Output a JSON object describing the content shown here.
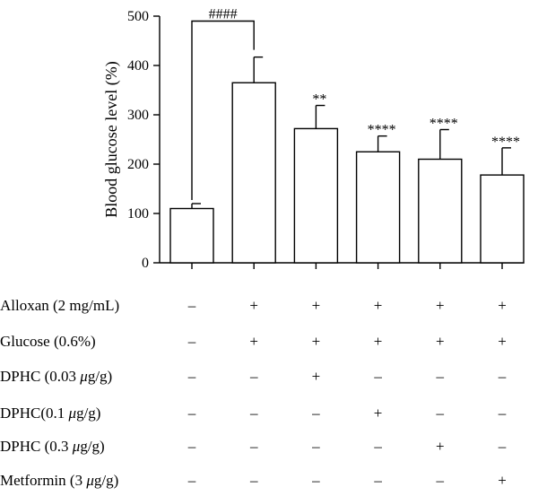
{
  "chart_data": {
    "type": "bar",
    "title": "",
    "xlabel": "",
    "ylabel": "Blood glucose level (%)",
    "ylim": [
      0,
      500
    ],
    "yticks": [
      "0",
      "100",
      "200",
      "300",
      "400",
      "500"
    ],
    "grid": false,
    "series": [
      {
        "values": [
          110,
          365,
          272,
          225,
          210,
          178
        ],
        "errors": [
          10,
          52,
          47,
          32,
          60,
          55
        ],
        "significance": [
          "",
          "",
          "**",
          "****",
          "****",
          "****"
        ]
      }
    ],
    "comparison": {
      "from": 0,
      "to": 1,
      "label": "####"
    },
    "treatments": [
      {
        "label": "Alloxan (2 mg/mL)",
        "marks": [
          "–",
          "+",
          "+",
          "+",
          "+",
          "+"
        ]
      },
      {
        "label": "Glucose (0.6%)",
        "marks": [
          "–",
          "+",
          "+",
          "+",
          "+",
          "+"
        ]
      },
      {
        "label_parts": [
          "DPHC (0.03 ",
          "μ",
          "g/g)"
        ],
        "marks": [
          "–",
          "–",
          "+",
          "–",
          "–",
          "–"
        ]
      },
      {
        "label_parts": [
          "DPHC(0.1 ",
          "μ",
          "g/g)"
        ],
        "marks": [
          "–",
          "–",
          "–",
          "+",
          "–",
          "–"
        ]
      },
      {
        "label_parts": [
          "DPHC (0.3 ",
          "μ",
          "g/g)"
        ],
        "marks": [
          "–",
          "–",
          "–",
          "–",
          "+",
          "–"
        ]
      },
      {
        "label_parts": [
          "Metformin (3 ",
          "μ",
          "g/g)"
        ],
        "marks": [
          "–",
          "–",
          "–",
          "–",
          "–",
          "+"
        ]
      }
    ]
  }
}
